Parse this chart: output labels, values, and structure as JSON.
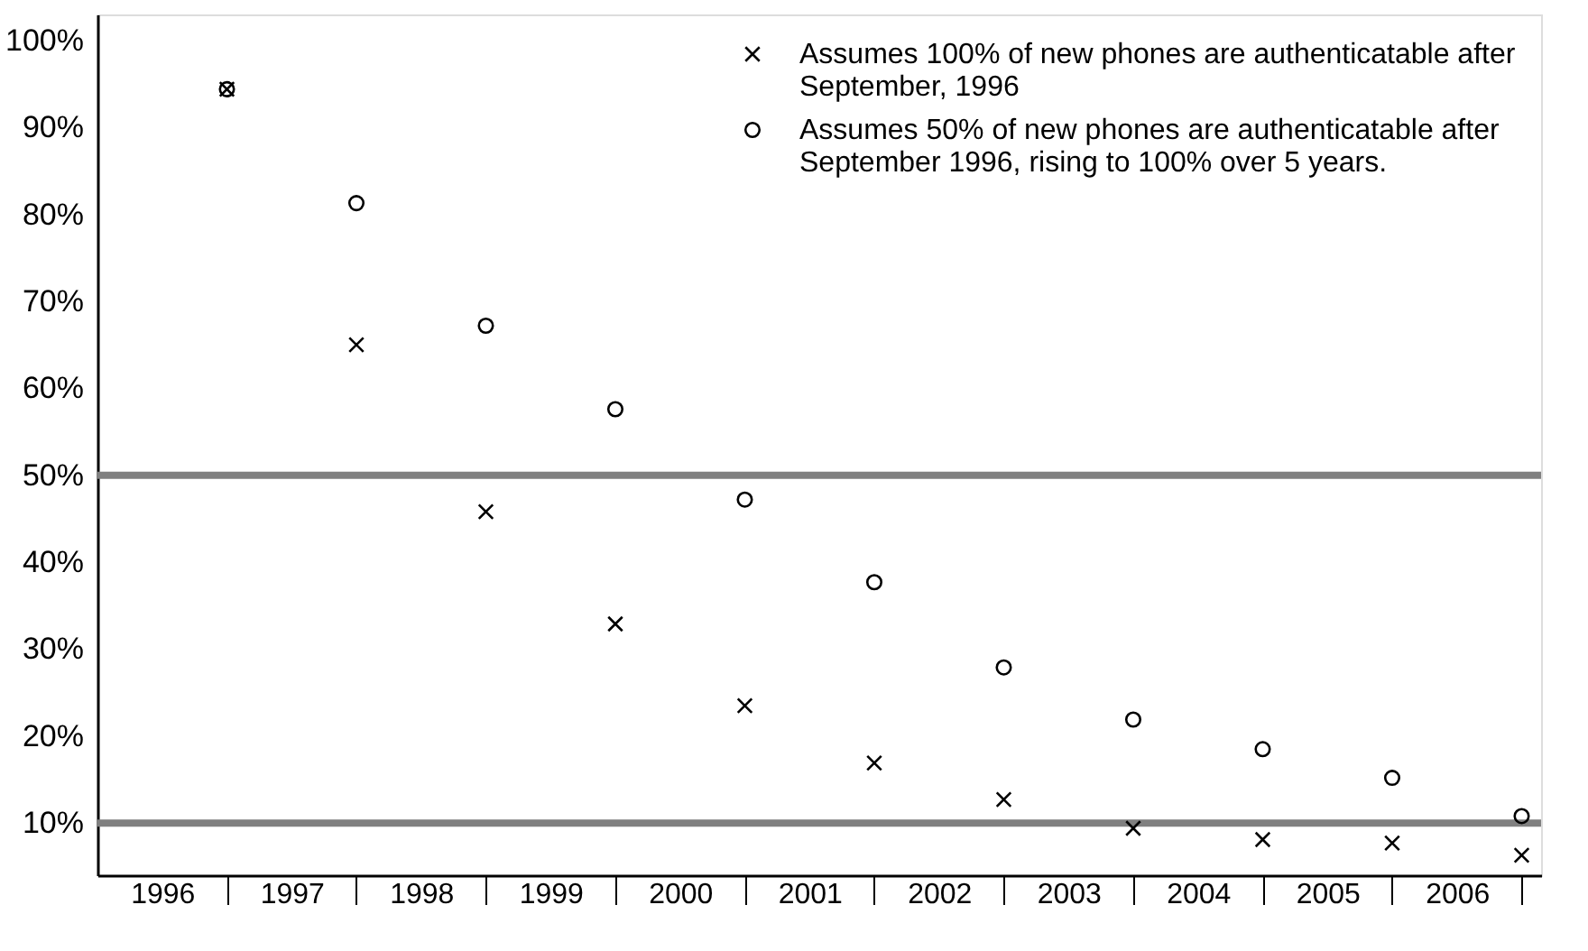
{
  "chart_data": {
    "type": "scatter",
    "x": [
      1997,
      1998,
      1999,
      2000,
      2001,
      2002,
      2003,
      2004,
      2005,
      2006,
      2007
    ],
    "series": [
      {
        "name": "Assumes 100% of new phones are authenticatable after September, 1996",
        "color": "#000000",
        "marker": "cross",
        "values": [
          94.4,
          65,
          45.8,
          32.9,
          23.5,
          16.9,
          12.7,
          9.4,
          8.1,
          7.7,
          6.3
        ]
      },
      {
        "name": "Assumes 50% of new phones are authenticatable after September 1996, rising to 100% over 5 years.",
        "color": "#000000",
        "marker": "circle",
        "values": [
          94.4,
          81.3,
          67.2,
          57.6,
          47.2,
          37.7,
          27.9,
          21.9,
          18.5,
          15.2,
          10.8
        ]
      }
    ],
    "xlim": [
      1996,
      2007.15
    ],
    "xticks": [
      {
        "value": 1996.5,
        "label": "1996"
      },
      {
        "value": 1997,
        "label": null
      },
      {
        "value": 1997.5,
        "label": "1997"
      },
      {
        "value": 1998,
        "label": null
      },
      {
        "value": 1998.5,
        "label": "1998"
      },
      {
        "value": 1999,
        "label": null
      },
      {
        "value": 1999.5,
        "label": "1999"
      },
      {
        "value": 2000,
        "label": null
      },
      {
        "value": 2000.5,
        "label": "2000"
      },
      {
        "value": 2001,
        "label": null
      },
      {
        "value": 2001.5,
        "label": "2001"
      },
      {
        "value": 2002,
        "label": null
      },
      {
        "value": 2002.5,
        "label": "2002"
      },
      {
        "value": 2003,
        "label": null
      },
      {
        "value": 2003.5,
        "label": "2003"
      },
      {
        "value": 2004,
        "label": null
      },
      {
        "value": 2004.5,
        "label": "2004"
      },
      {
        "value": 2005,
        "label": null
      },
      {
        "value": 2005.5,
        "label": "2005"
      },
      {
        "value": 2006,
        "label": null
      },
      {
        "value": 2006.5,
        "label": "2006"
      },
      {
        "value": 2007,
        "label": null
      }
    ],
    "ylim": [
      4,
      103
    ],
    "yticks": [
      {
        "value": 10,
        "label": "10%"
      },
      {
        "value": 20,
        "label": "20%"
      },
      {
        "value": 30,
        "label": "30%"
      },
      {
        "value": 40,
        "label": "40%"
      },
      {
        "value": 50,
        "label": "50%"
      },
      {
        "value": 60,
        "label": "60%"
      },
      {
        "value": 70,
        "label": "70%"
      },
      {
        "value": 80,
        "label": "80%"
      },
      {
        "value": 90,
        "label": "90%"
      },
      {
        "value": 100,
        "label": "100%"
      }
    ],
    "ref_lines": [
      {
        "axis": "y",
        "value": 50,
        "color": "#808080"
      },
      {
        "axis": "y",
        "value": 10,
        "color": "#808080"
      }
    ],
    "grid": false,
    "legend": "top right"
  }
}
